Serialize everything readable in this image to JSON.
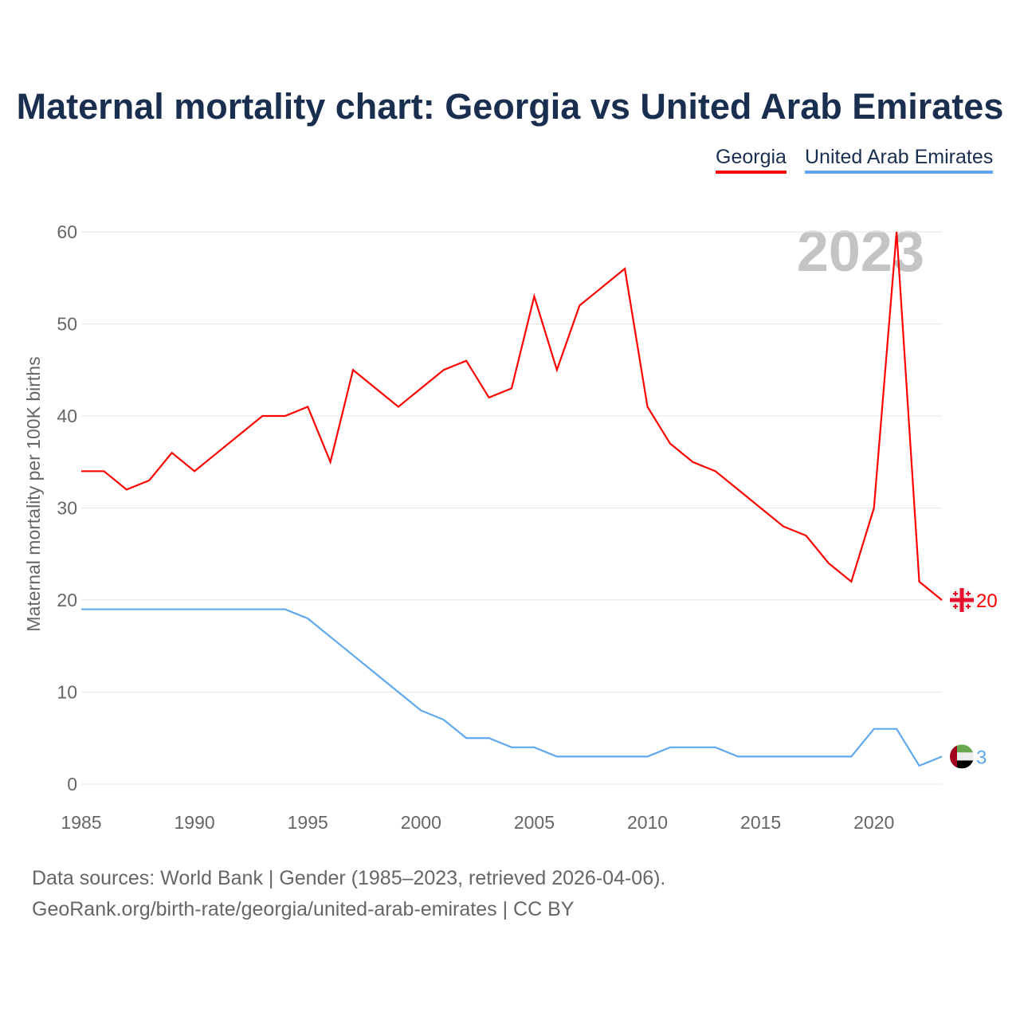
{
  "title": "Maternal mortality chart: Georgia vs United Arab Emirates",
  "footer": {
    "line1": "Data sources: World Bank | Gender (1985–2023, retrieved 2026-04-06).",
    "line2": "GeoRank.org/birth-rate/georgia/united-arab-emirates | CC BY"
  },
  "chart_data": {
    "type": "line",
    "title": "Maternal mortality chart: Georgia vs United Arab Emirates",
    "ylabel": "Maternal mortality per 100K births",
    "xlabel": "",
    "year_watermark": "2023",
    "ylim": [
      0,
      60
    ],
    "xlim": [
      1985,
      2023
    ],
    "yticks": [
      0,
      10,
      20,
      30,
      40,
      50,
      60
    ],
    "xticks": [
      1985,
      1990,
      1995,
      2000,
      2005,
      2010,
      2015,
      2020
    ],
    "legend": "top-right",
    "x": [
      1985,
      1986,
      1987,
      1988,
      1989,
      1990,
      1991,
      1992,
      1993,
      1994,
      1995,
      1996,
      1997,
      1998,
      1999,
      2000,
      2001,
      2002,
      2003,
      2004,
      2005,
      2006,
      2007,
      2008,
      2009,
      2010,
      2011,
      2012,
      2013,
      2014,
      2015,
      2016,
      2017,
      2018,
      2019,
      2020,
      2021,
      2022,
      2023
    ],
    "series": [
      {
        "name": "Georgia",
        "color": "#ff0000",
        "end_label": "20",
        "values": [
          34,
          34,
          32,
          33,
          36,
          34,
          36,
          38,
          40,
          40,
          41,
          35,
          45,
          43,
          41,
          43,
          45,
          46,
          42,
          43,
          53,
          45,
          52,
          54,
          56,
          41,
          37,
          35,
          34,
          32,
          30,
          28,
          27,
          24,
          22,
          30,
          60,
          22,
          20
        ]
      },
      {
        "name": "United Arab Emirates",
        "color": "#5fa8ee",
        "end_label": "3",
        "values": [
          19,
          19,
          19,
          19,
          19,
          19,
          19,
          19,
          19,
          19,
          18,
          16,
          14,
          12,
          10,
          8,
          7,
          5,
          5,
          4,
          4,
          3,
          3,
          3,
          3,
          3,
          4,
          4,
          4,
          3,
          3,
          3,
          3,
          3,
          3,
          6,
          6,
          2,
          3
        ]
      }
    ]
  }
}
